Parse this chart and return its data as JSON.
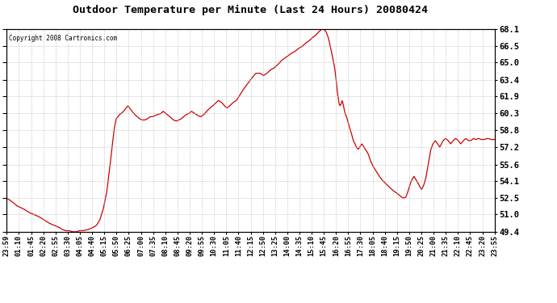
{
  "title": "Outdoor Temperature per Minute (Last 24 Hours) 20080424",
  "copyright": "Copyright 2008 Cartronics.com",
  "line_color": "#cc0000",
  "background_color": "#ffffff",
  "grid_color": "#bbbbbb",
  "yticks": [
    49.4,
    51.0,
    52.5,
    54.1,
    55.6,
    57.2,
    58.8,
    60.3,
    61.9,
    63.4,
    65.0,
    66.5,
    68.1
  ],
  "ylim": [
    49.4,
    68.1
  ],
  "xtick_labels": [
    "23:59",
    "01:10",
    "01:45",
    "02:20",
    "02:55",
    "03:30",
    "04:05",
    "04:40",
    "05:15",
    "05:50",
    "06:25",
    "07:00",
    "07:35",
    "08:10",
    "08:45",
    "09:20",
    "09:55",
    "10:30",
    "11:05",
    "11:40",
    "12:15",
    "12:50",
    "13:25",
    "14:00",
    "14:35",
    "15:10",
    "15:45",
    "16:20",
    "16:55",
    "17:30",
    "18:05",
    "18:40",
    "19:15",
    "19:50",
    "20:25",
    "21:00",
    "21:35",
    "22:10",
    "22:45",
    "23:20",
    "23:55"
  ],
  "waypoints": [
    [
      0,
      52.5
    ],
    [
      15,
      52.2
    ],
    [
      30,
      51.8
    ],
    [
      50,
      51.5
    ],
    [
      65,
      51.2
    ],
    [
      80,
      51.0
    ],
    [
      95,
      50.8
    ],
    [
      110,
      50.5
    ],
    [
      125,
      50.2
    ],
    [
      140,
      50.0
    ],
    [
      155,
      49.8
    ],
    [
      165,
      49.6
    ],
    [
      175,
      49.5
    ],
    [
      185,
      49.5
    ],
    [
      195,
      49.4
    ],
    [
      205,
      49.4
    ],
    [
      215,
      49.5
    ],
    [
      225,
      49.5
    ],
    [
      240,
      49.6
    ],
    [
      255,
      49.8
    ],
    [
      265,
      50.0
    ],
    [
      275,
      50.5
    ],
    [
      285,
      51.5
    ],
    [
      295,
      53.0
    ],
    [
      305,
      55.5
    ],
    [
      312,
      57.5
    ],
    [
      318,
      59.0
    ],
    [
      323,
      59.8
    ],
    [
      328,
      60.0
    ],
    [
      333,
      60.2
    ],
    [
      338,
      60.3
    ],
    [
      345,
      60.5
    ],
    [
      352,
      60.8
    ],
    [
      358,
      61.0
    ],
    [
      363,
      60.8
    ],
    [
      370,
      60.5
    ],
    [
      378,
      60.2
    ],
    [
      385,
      60.0
    ],
    [
      393,
      59.8
    ],
    [
      400,
      59.7
    ],
    [
      408,
      59.7
    ],
    [
      415,
      59.8
    ],
    [
      423,
      60.0
    ],
    [
      430,
      60.0
    ],
    [
      438,
      60.1
    ],
    [
      445,
      60.2
    ],
    [
      455,
      60.3
    ],
    [
      462,
      60.5
    ],
    [
      470,
      60.3
    ],
    [
      478,
      60.1
    ],
    [
      485,
      59.9
    ],
    [
      492,
      59.7
    ],
    [
      500,
      59.6
    ],
    [
      508,
      59.7
    ],
    [
      515,
      59.8
    ],
    [
      522,
      60.0
    ],
    [
      530,
      60.2
    ],
    [
      538,
      60.3
    ],
    [
      545,
      60.5
    ],
    [
      555,
      60.3
    ],
    [
      565,
      60.1
    ],
    [
      573,
      60.0
    ],
    [
      582,
      60.2
    ],
    [
      590,
      60.5
    ],
    [
      600,
      60.8
    ],
    [
      608,
      61.0
    ],
    [
      615,
      61.2
    ],
    [
      625,
      61.5
    ],
    [
      635,
      61.3
    ],
    [
      643,
      61.0
    ],
    [
      650,
      60.8
    ],
    [
      658,
      61.0
    ],
    [
      668,
      61.3
    ],
    [
      678,
      61.5
    ],
    [
      688,
      62.0
    ],
    [
      698,
      62.5
    ],
    [
      710,
      63.0
    ],
    [
      722,
      63.5
    ],
    [
      735,
      64.0
    ],
    [
      748,
      64.0
    ],
    [
      758,
      63.8
    ],
    [
      768,
      64.0
    ],
    [
      778,
      64.3
    ],
    [
      790,
      64.5
    ],
    [
      800,
      64.8
    ],
    [
      812,
      65.2
    ],
    [
      825,
      65.5
    ],
    [
      838,
      65.8
    ],
    [
      850,
      66.0
    ],
    [
      862,
      66.3
    ],
    [
      873,
      66.5
    ],
    [
      883,
      66.8
    ],
    [
      893,
      67.0
    ],
    [
      903,
      67.3
    ],
    [
      912,
      67.5
    ],
    [
      920,
      67.8
    ],
    [
      928,
      68.0
    ],
    [
      933,
      68.1
    ],
    [
      938,
      68.0
    ],
    [
      943,
      67.8
    ],
    [
      950,
      67.2
    ],
    [
      957,
      66.2
    ],
    [
      963,
      65.3
    ],
    [
      968,
      64.5
    ],
    [
      972,
      63.5
    ],
    [
      975,
      62.5
    ],
    [
      978,
      61.8
    ],
    [
      981,
      61.2
    ],
    [
      984,
      61.0
    ],
    [
      987,
      61.2
    ],
    [
      990,
      61.5
    ],
    [
      992,
      61.3
    ],
    [
      994,
      61.0
    ],
    [
      997,
      60.5
    ],
    [
      1000,
      60.2
    ],
    [
      1005,
      59.8
    ],
    [
      1010,
      59.2
    ],
    [
      1017,
      58.5
    ],
    [
      1023,
      57.8
    ],
    [
      1028,
      57.5
    ],
    [
      1032,
      57.2
    ],
    [
      1037,
      57.0
    ],
    [
      1042,
      57.2
    ],
    [
      1048,
      57.5
    ],
    [
      1053,
      57.3
    ],
    [
      1058,
      57.0
    ],
    [
      1063,
      56.8
    ],
    [
      1068,
      56.5
    ],
    [
      1073,
      56.0
    ],
    [
      1080,
      55.5
    ],
    [
      1090,
      55.0
    ],
    [
      1100,
      54.5
    ],
    [
      1110,
      54.1
    ],
    [
      1120,
      53.8
    ],
    [
      1130,
      53.5
    ],
    [
      1140,
      53.2
    ],
    [
      1150,
      53.0
    ],
    [
      1158,
      52.8
    ],
    [
      1165,
      52.6
    ],
    [
      1172,
      52.5
    ],
    [
      1178,
      52.6
    ],
    [
      1183,
      53.0
    ],
    [
      1188,
      53.5
    ],
    [
      1193,
      54.0
    ],
    [
      1198,
      54.3
    ],
    [
      1202,
      54.5
    ],
    [
      1206,
      54.3
    ],
    [
      1210,
      54.1
    ],
    [
      1215,
      53.8
    ],
    [
      1220,
      53.5
    ],
    [
      1225,
      53.3
    ],
    [
      1228,
      53.5
    ],
    [
      1232,
      53.8
    ],
    [
      1238,
      54.5
    ],
    [
      1245,
      55.8
    ],
    [
      1252,
      57.0
    ],
    [
      1258,
      57.5
    ],
    [
      1265,
      57.8
    ],
    [
      1272,
      57.5
    ],
    [
      1278,
      57.2
    ],
    [
      1283,
      57.5
    ],
    [
      1288,
      57.8
    ],
    [
      1295,
      58.0
    ],
    [
      1303,
      57.8
    ],
    [
      1310,
      57.5
    ],
    [
      1318,
      57.8
    ],
    [
      1325,
      58.0
    ],
    [
      1333,
      57.8
    ],
    [
      1340,
      57.5
    ],
    [
      1348,
      57.8
    ],
    [
      1355,
      58.0
    ],
    [
      1363,
      57.8
    ],
    [
      1370,
      57.8
    ],
    [
      1378,
      58.0
    ],
    [
      1385,
      57.9
    ],
    [
      1392,
      58.0
    ],
    [
      1400,
      57.9
    ],
    [
      1408,
      57.9
    ],
    [
      1420,
      58.0
    ],
    [
      1430,
      57.9
    ],
    [
      1440,
      57.9
    ]
  ]
}
